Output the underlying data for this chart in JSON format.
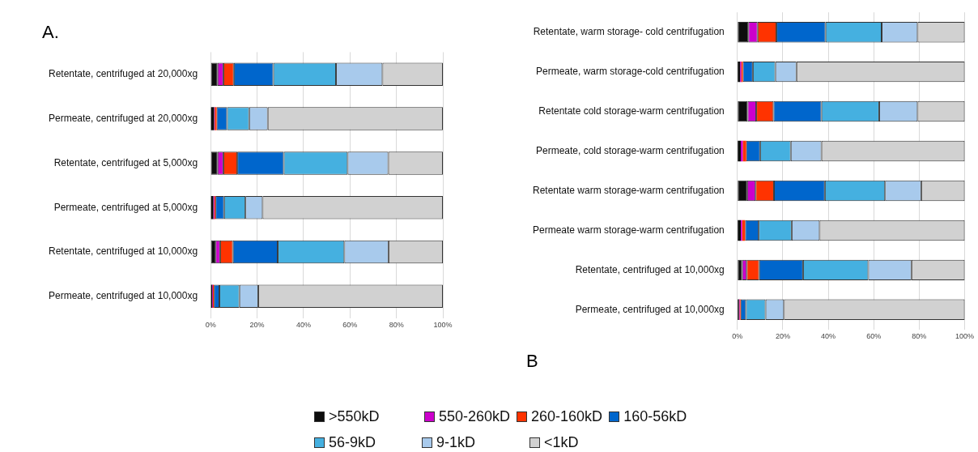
{
  "chart_data": [
    {
      "type": "bar",
      "title": "A.",
      "orientation": "horizontal",
      "stacked": true,
      "grid": "x",
      "legend": "bottom",
      "categories": [
        "Retentate, centrifuged at 20,000xg",
        "Permeate, centrifuged at 20,000xg",
        "Retentate, centrifuged at 5,000xg",
        "Permeate, centrifuged at 5,000xg",
        "Retentate, centrifuged at 10,000xg",
        "Permeate, centrifuged at 10,000xg"
      ],
      "xlim": [
        0,
        100
      ],
      "xticks": [
        {
          "value": 0,
          "label": "0%"
        },
        {
          "value": 20,
          "label": "20%"
        },
        {
          "value": 40,
          "label": "40%"
        },
        {
          "value": 60,
          "label": "60%"
        },
        {
          "value": 80,
          "label": "80%"
        },
        {
          "value": 100,
          "label": "100%"
        }
      ],
      "series": [
        {
          "name": ">550kD",
          "color": "#0d0d0d",
          "values": [
            3,
            1.5,
            3,
            1.2,
            2.1,
            0.7
          ]
        },
        {
          "name": "550-260kD",
          "color": "#cc00cc",
          "values": [
            2.5,
            0.3,
            2.5,
            0.4,
            2,
            0.3
          ]
        },
        {
          "name": "260-160kD",
          "color": "#ff3300",
          "values": [
            4.5,
            0.8,
            6,
            0.5,
            5.5,
            0.4
          ]
        },
        {
          "name": "160-56kD",
          "color": "#0066cc",
          "values": [
            17,
            4.5,
            20,
            3.7,
            19.3,
            2.4
          ]
        },
        {
          "name": "56-9kD",
          "color": "#45b0e0",
          "values": [
            27,
            9.5,
            27.5,
            9.2,
            28.7,
            8.6
          ]
        },
        {
          "name": "9-1kD",
          "color": "#a8caec",
          "values": [
            20,
            8,
            17.5,
            7.4,
            19,
            8.1
          ]
        },
        {
          "name": "<1kD",
          "color": "#d1d1d1",
          "values": [
            26,
            75.4,
            23.5,
            77.6,
            23.4,
            79.5
          ]
        }
      ]
    },
    {
      "type": "bar",
      "title": "B",
      "orientation": "horizontal",
      "stacked": true,
      "grid": "x",
      "categories": [
        "Retentate, warm storage- cold centrifugation",
        "Permeate, warm storage-cold centrifugation",
        "Retentate cold storage-warm centrifugation",
        "Permeate, cold storage-warm centrifugation",
        "Retentate warm storage-warm centrifugation",
        "Permeate warm storage-warm centrifugation",
        "Retentate, centrifuged at 10,000xg",
        "Permeate, centrifuged at 10,000xg"
      ],
      "xlim": [
        0,
        100
      ],
      "xticks": [
        {
          "value": 0,
          "label": "0%"
        },
        {
          "value": 20,
          "label": "20%"
        },
        {
          "value": 40,
          "label": "40%"
        },
        {
          "value": 60,
          "label": "60%"
        },
        {
          "value": 80,
          "label": "80%"
        },
        {
          "value": 100,
          "label": "100%"
        }
      ],
      "series": [
        {
          "color": "#0d0d0d",
          "values": [
            4.8,
            1.2,
            4.5,
            1.5,
            4.3,
            1.5,
            2.1,
            0.7
          ]
        },
        {
          "color": "#cc00cc",
          "values": [
            4.1,
            0.5,
            3.8,
            0.9,
            3.7,
            0.6,
            2,
            0.3
          ]
        },
        {
          "color": "#ff3300",
          "values": [
            8.3,
            0.7,
            7.6,
            1.5,
            8.1,
            1.3,
            5.5,
            0.4
          ]
        },
        {
          "color": "#0066cc",
          "values": [
            21.6,
            4.4,
            21.1,
            6.1,
            22.4,
            6,
            19.3,
            2.4
          ]
        },
        {
          "color": "#45b0e0",
          "values": [
            24.7,
            9.9,
            25.4,
            13.5,
            26.5,
            14.5,
            28.7,
            8.6
          ]
        },
        {
          "color": "#a8caec",
          "values": [
            15.8,
            9.3,
            16.9,
            13.5,
            15.9,
            12.3,
            19,
            8.1
          ]
        },
        {
          "color": "#d1d1d1",
          "values": [
            20.7,
            74,
            20.7,
            63,
            19.1,
            63.8,
            23.4,
            79.5
          ]
        }
      ]
    }
  ]
}
